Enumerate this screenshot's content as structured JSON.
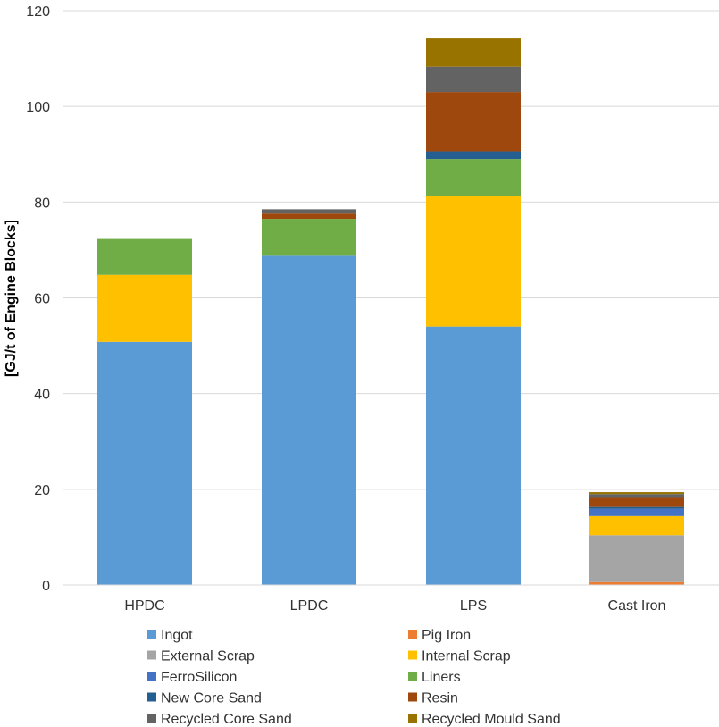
{
  "chart_data": {
    "type": "bar",
    "stacked": true,
    "categories": [
      "HPDC",
      "LPDC",
      "LPS",
      "Cast Iron"
    ],
    "ylabel": "[GJ/t of Engine Blocks]",
    "xlabel": "",
    "ylim": [
      0,
      120
    ],
    "yticks": [
      0,
      20,
      40,
      60,
      80,
      100,
      120
    ],
    "grid": true,
    "legend_position": "bottom",
    "series": [
      {
        "name": "Ingot",
        "color": "#5B9BD5",
        "values": [
          50.8,
          68.8,
          54.0,
          0
        ]
      },
      {
        "name": "Pig Iron",
        "color": "#ED7D31",
        "values": [
          0,
          0,
          0,
          0.6
        ]
      },
      {
        "name": "External Scrap",
        "color": "#A5A5A5",
        "values": [
          0,
          0,
          0,
          9.8
        ]
      },
      {
        "name": "Internal Scrap",
        "color": "#FFC000",
        "values": [
          14.0,
          0,
          27.3,
          4.0
        ]
      },
      {
        "name": "FerroSilicon",
        "color": "#4472C4",
        "values": [
          0,
          0,
          0,
          1.5
        ]
      },
      {
        "name": "Liners",
        "color": "#70AD47",
        "values": [
          7.5,
          7.7,
          7.7,
          0
        ]
      },
      {
        "name": "New Core Sand",
        "color": "#255E91",
        "values": [
          0,
          0,
          1.6,
          0.4
        ]
      },
      {
        "name": "Resin",
        "color": "#9E480E",
        "values": [
          0,
          1.1,
          12.4,
          1.9
        ]
      },
      {
        "name": "Recycled Core Sand",
        "color": "#636363",
        "values": [
          0,
          0.9,
          5.3,
          0.8
        ]
      },
      {
        "name": "Recycled Mould Sand",
        "color": "#997300",
        "values": [
          0,
          0,
          5.9,
          0.4
        ]
      }
    ]
  }
}
